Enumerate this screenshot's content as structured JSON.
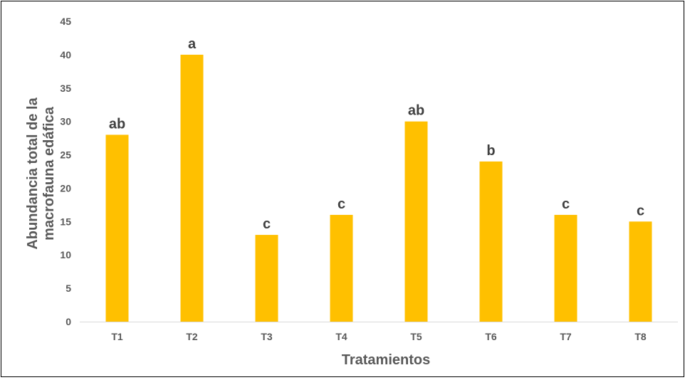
{
  "chart_data": {
    "type": "bar",
    "categories": [
      "T1",
      "T2",
      "T3",
      "T4",
      "T5",
      "T6",
      "T7",
      "T8"
    ],
    "values": [
      28,
      40,
      13,
      16,
      30,
      24,
      16,
      15
    ],
    "data_labels": [
      "ab",
      "a",
      "c",
      "c",
      "ab",
      "b",
      "c",
      "c"
    ],
    "title": "",
    "xlabel": "Tratamientos",
    "ylabel_lines": [
      "Abundancia total de la",
      "macrofauna edáfica"
    ],
    "ylim": [
      0,
      45
    ],
    "y_ticks": [
      "0",
      "5",
      "10",
      "15",
      "20",
      "25",
      "30",
      "35",
      "40",
      "45"
    ],
    "grid": false,
    "legend": "none",
    "bar_color": "#FFC000",
    "axis_color": "#D9D9D9"
  }
}
